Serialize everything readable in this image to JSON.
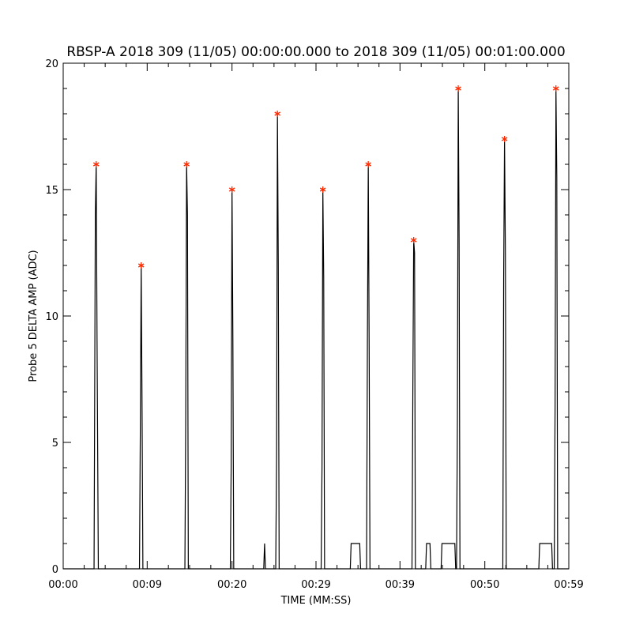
{
  "chart_data": {
    "type": "line",
    "title": "RBSP-A 2018 309 (11/05) 00:00:00.000 to 2018 309 (11/05) 00:01:00.000",
    "xlabel": "TIME (MM:SS)",
    "ylabel": "Probe 5 DELTA AMP (ADC)",
    "xlim": [
      0,
      59
    ],
    "ylim": [
      0,
      20
    ],
    "x_ticks": [
      {
        "value": 0,
        "label": "00:00"
      },
      {
        "value": 9.8,
        "label": "00:09"
      },
      {
        "value": 19.7,
        "label": "00:20"
      },
      {
        "value": 29.5,
        "label": "00:29"
      },
      {
        "value": 39.3,
        "label": "00:39"
      },
      {
        "value": 49.2,
        "label": "00:50"
      },
      {
        "value": 59,
        "label": "00:59"
      }
    ],
    "y_ticks": [
      {
        "value": 0,
        "label": "0"
      },
      {
        "value": 5,
        "label": "5"
      },
      {
        "value": 10,
        "label": "10"
      },
      {
        "value": 15,
        "label": "15"
      },
      {
        "value": 20,
        "label": "20"
      }
    ],
    "series": [
      {
        "style": "line",
        "color": "#000000",
        "points": [
          [
            0,
            0
          ],
          [
            3.6,
            0
          ],
          [
            3.75,
            14
          ],
          [
            3.85,
            16
          ],
          [
            3.95,
            9
          ],
          [
            4.1,
            0
          ],
          [
            8.9,
            0
          ],
          [
            9.0,
            5.5
          ],
          [
            9.1,
            12
          ],
          [
            9.2,
            6.5
          ],
          [
            9.3,
            0
          ],
          [
            14.2,
            0
          ],
          [
            14.3,
            6
          ],
          [
            14.4,
            16
          ],
          [
            14.5,
            14
          ],
          [
            14.6,
            0
          ],
          [
            19.5,
            0
          ],
          [
            19.6,
            4
          ],
          [
            19.7,
            15
          ],
          [
            19.8,
            9
          ],
          [
            19.9,
            0
          ],
          [
            23.4,
            0
          ],
          [
            23.5,
            1
          ],
          [
            23.6,
            0
          ],
          [
            24.8,
            0
          ],
          [
            24.9,
            4.5
          ],
          [
            25.0,
            18
          ],
          [
            25.1,
            12
          ],
          [
            25.2,
            0
          ],
          [
            30.1,
            0
          ],
          [
            30.2,
            4
          ],
          [
            30.3,
            15
          ],
          [
            30.4,
            11.5
          ],
          [
            30.5,
            0
          ],
          [
            33.5,
            0
          ],
          [
            33.6,
            1
          ],
          [
            34.6,
            1
          ],
          [
            34.7,
            0
          ],
          [
            35.4,
            0
          ],
          [
            35.5,
            9
          ],
          [
            35.6,
            16
          ],
          [
            35.7,
            9
          ],
          [
            35.8,
            0
          ],
          [
            40.7,
            0
          ],
          [
            40.8,
            7
          ],
          [
            40.9,
            13
          ],
          [
            41.0,
            12.5
          ],
          [
            41.1,
            0
          ],
          [
            42.3,
            0
          ],
          [
            42.4,
            1
          ],
          [
            42.8,
            1
          ],
          [
            42.9,
            0
          ],
          [
            44.1,
            0
          ],
          [
            44.2,
            1
          ],
          [
            45.7,
            1
          ],
          [
            45.8,
            0
          ],
          [
            45.9,
            0
          ],
          [
            46.0,
            6
          ],
          [
            46.1,
            19
          ],
          [
            46.2,
            13
          ],
          [
            46.3,
            0
          ],
          [
            51.3,
            0
          ],
          [
            51.4,
            11.5
          ],
          [
            51.5,
            17
          ],
          [
            51.6,
            12.5
          ],
          [
            51.7,
            0
          ],
          [
            55.5,
            0
          ],
          [
            55.6,
            1
          ],
          [
            57.0,
            1
          ],
          [
            57.1,
            0
          ],
          [
            57.3,
            0
          ],
          [
            57.4,
            6.5
          ],
          [
            57.5,
            19
          ],
          [
            57.6,
            15.5
          ],
          [
            57.7,
            0
          ],
          [
            59,
            0
          ]
        ]
      },
      {
        "style": "markers",
        "marker": "asterisk",
        "color": "#ff2a00",
        "points": [
          [
            3.85,
            16
          ],
          [
            9.1,
            12
          ],
          [
            14.4,
            16
          ],
          [
            19.7,
            15
          ],
          [
            25.0,
            18
          ],
          [
            30.3,
            15
          ],
          [
            35.6,
            16
          ],
          [
            40.9,
            13
          ],
          [
            46.1,
            19
          ],
          [
            51.5,
            17
          ],
          [
            57.5,
            19
          ]
        ]
      }
    ],
    "grid": false
  }
}
